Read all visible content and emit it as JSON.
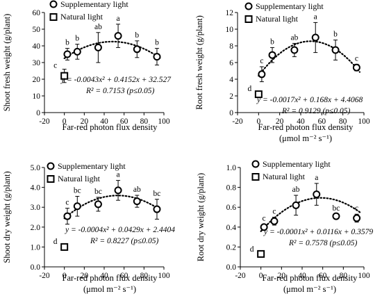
{
  "chart_data": [
    {
      "type": "scatter",
      "xlabel_lines": [
        "Far-red photon flux density"
      ],
      "ylabel": "Shoot fresh weight (g/plant)",
      "xlim": [
        -20,
        100
      ],
      "xticks": [
        -20,
        0,
        20,
        40,
        60,
        80,
        100
      ],
      "ylim": [
        0,
        60
      ],
      "yticks": [
        0,
        10,
        20,
        30,
        40,
        50,
        60
      ],
      "legend": [
        "Supplementary light",
        "Natural light"
      ],
      "series": [
        {
          "name": "Supplementary light",
          "marker": "circle",
          "x": [
            3,
            13,
            34,
            54,
            73,
            93
          ],
          "values": [
            35,
            36.5,
            39,
            46,
            38,
            33.5
          ],
          "errors": [
            3.5,
            4.5,
            9,
            7,
            5,
            5
          ],
          "letters": [
            "b",
            "b",
            "ab",
            "a",
            "b",
            "b"
          ]
        },
        {
          "name": "Natural light",
          "marker": "square",
          "x": [
            0
          ],
          "values": [
            22
          ],
          "errors": [
            4
          ],
          "letters": [
            "c"
          ]
        }
      ],
      "trend": {
        "type": "poly2",
        "coef": [
          -0.0043,
          0.4152,
          32.527
        ],
        "equation": "y = -0.0043x² + 0.4152x + 32.527",
        "r2": "R² = 0.7153 (p≤0.05)"
      }
    },
    {
      "type": "scatter",
      "xlabel_lines": [
        "Far-red  photon flux density",
        "(μmol m⁻² s⁻¹)"
      ],
      "ylabel": "Root fresh weight (g/plant)",
      "xlim": [
        -20,
        100
      ],
      "xticks": [
        -20,
        0,
        20,
        40,
        60,
        80,
        100
      ],
      "ylim": [
        0,
        12
      ],
      "yticks": [
        0,
        2,
        4,
        6,
        8,
        10,
        12
      ],
      "legend": [
        "Supplementary light",
        "Natural light"
      ],
      "series": [
        {
          "name": "Supplementary light",
          "marker": "circle",
          "x": [
            3,
            13,
            34,
            54,
            73,
            93
          ],
          "values": [
            4.6,
            6.9,
            7.5,
            9.0,
            7.5,
            5.4
          ],
          "errors": [
            0.9,
            0.9,
            0.8,
            1.8,
            1.2,
            0.4
          ],
          "letters": [
            "c",
            "b",
            "ab",
            "a",
            "b",
            "c"
          ]
        },
        {
          "name": "Natural light",
          "marker": "square",
          "x": [
            0
          ],
          "values": [
            2.2
          ],
          "errors": [
            0.2
          ],
          "letters": [
            "d"
          ]
        }
      ],
      "trend": {
        "type": "poly2",
        "coef": [
          -0.0017,
          0.168,
          4.4068
        ],
        "equation": "y = -0.0017x² + 0.168x + 4.4068",
        "r2": "R² = 0.9129 (p≤0.05)"
      }
    },
    {
      "type": "scatter",
      "xlabel_lines": [
        "Far-red photon flux density",
        "(μmol m⁻² s⁻¹)"
      ],
      "ylabel": "Shoot dry weight (g/plant)",
      "xlim": [
        -20,
        100
      ],
      "xticks": [
        -20,
        0,
        20,
        40,
        60,
        80,
        100
      ],
      "ylim": [
        0,
        5
      ],
      "yticks": [
        0,
        1,
        2,
        3,
        4,
        5
      ],
      "ytick_labels": [
        "0.0",
        "1.0",
        "2.0",
        "3.0",
        "4.0",
        "5.0"
      ],
      "legend": [
        "Supplementary light",
        "Natural light"
      ],
      "series": [
        {
          "name": "Supplementary light",
          "marker": "circle",
          "x": [
            3,
            13,
            34,
            54,
            73,
            93
          ],
          "values": [
            2.55,
            3.05,
            3.15,
            3.85,
            3.3,
            2.9
          ],
          "errors": [
            0.4,
            0.5,
            0.35,
            0.5,
            0.3,
            0.5
          ],
          "letters": [
            "c",
            "bc",
            "bc",
            "a",
            "ab",
            "bc"
          ]
        },
        {
          "name": "Natural light",
          "marker": "square",
          "x": [
            0
          ],
          "values": [
            1.0
          ],
          "errors": [
            0.08
          ],
          "letters": [
            "d"
          ]
        }
      ],
      "trend": {
        "type": "poly2",
        "coef": [
          -0.0004,
          0.0429,
          2.4404
        ],
        "equation": "y = -0.0004x² + 0.0429x + 2.4404",
        "r2": "R² = 0.8227 (p≤0.05)"
      }
    },
    {
      "type": "scatter",
      "xlabel_lines": [
        "Far-red photon flux density",
        "(μmol m⁻² s⁻¹)"
      ],
      "ylabel": "Root dry weight (g/plant)",
      "xlim": [
        -20,
        100
      ],
      "xticks": [
        -20,
        0,
        20,
        40,
        60,
        80,
        100
      ],
      "ylim": [
        0,
        1.0
      ],
      "yticks": [
        0,
        0.2,
        0.4,
        0.6,
        0.8,
        1.0
      ],
      "ytick_labels": [
        "0.0",
        "0.2",
        "0.4",
        "0.6",
        "0.8",
        "1.0"
      ],
      "legend": [
        "Supplementary light",
        "Natural light"
      ],
      "series": [
        {
          "name": "Supplementary light",
          "marker": "circle",
          "x": [
            3,
            13,
            34,
            54,
            73,
            93
          ],
          "values": [
            0.4,
            0.46,
            0.62,
            0.73,
            0.51,
            0.49
          ],
          "errors": [
            0.03,
            0.04,
            0.1,
            0.11,
            0.02,
            0.04
          ],
          "letters": [
            "c",
            "c",
            "ab",
            "a",
            "bc",
            "c"
          ]
        },
        {
          "name": "Natural light",
          "marker": "square",
          "x": [
            0
          ],
          "values": [
            0.13
          ],
          "errors": [
            0.01
          ],
          "letters": [
            "d"
          ]
        }
      ],
      "trend": {
        "type": "poly2",
        "coef": [
          -0.0001,
          0.0116,
          0.3579
        ],
        "equation": "y = -0.0001x² + 0.0116x + 0.3579",
        "r2": "R² = 0.7578 (p≤0.05)"
      }
    }
  ]
}
